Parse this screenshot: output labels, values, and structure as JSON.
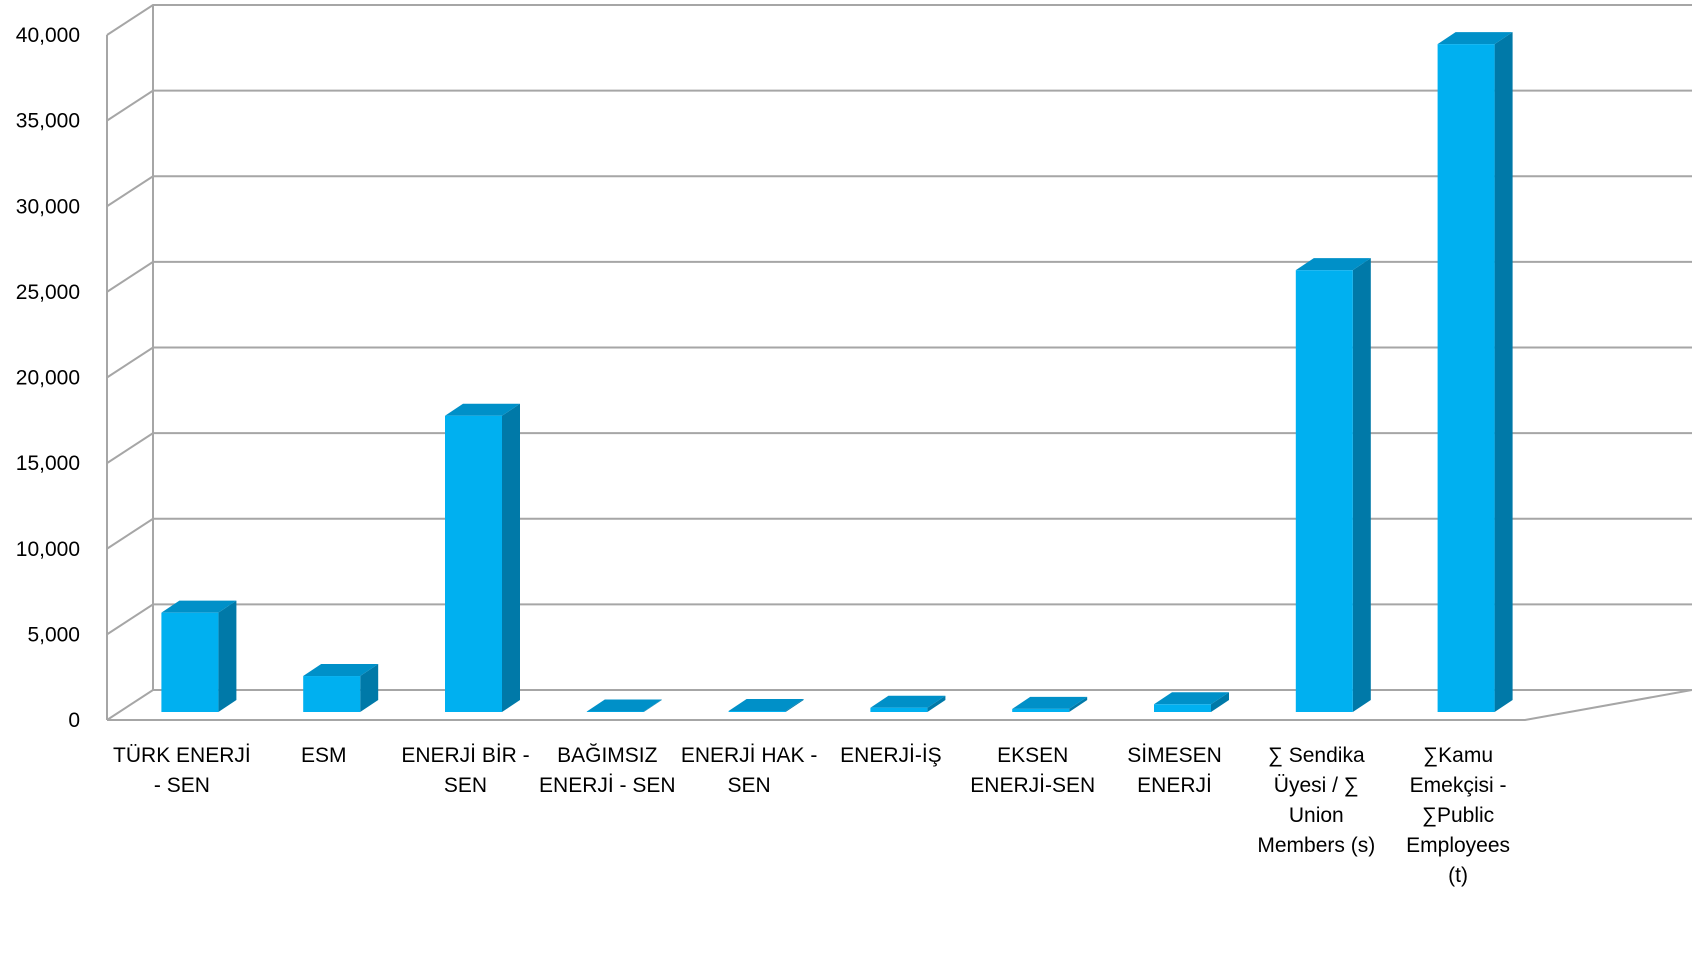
{
  "chart_data": {
    "type": "bar",
    "title": "",
    "xlabel": "",
    "ylabel": "",
    "ylim": [
      0,
      40000
    ],
    "grid": true,
    "style": "3d-column",
    "colors": {
      "front": "#00B0F0",
      "side": "#0079A8",
      "top": "#0090C8",
      "grid": "#A6A6A6"
    },
    "y_ticks": [
      "0",
      "5,000",
      "10,000",
      "15,000",
      "20,000",
      "25,000",
      "30,000",
      "35,000",
      "40,000"
    ],
    "categories": [
      [
        "TÜRK ENERJİ",
        "- SEN"
      ],
      [
        "ESM"
      ],
      [
        "ENERJİ BİR -",
        "SEN"
      ],
      [
        "BAĞIMSIZ",
        "ENERJİ - SEN"
      ],
      [
        "ENERJİ HAK -",
        "SEN"
      ],
      [
        "ENERJİ-İŞ"
      ],
      [
        "EKSEN",
        "ENERJİ-SEN"
      ],
      [
        "SİMESEN",
        "ENERJİ"
      ],
      [
        "∑ Sendika",
        "Üyesi / ∑",
        "Union",
        "Members (s)"
      ],
      [
        "∑Kamu",
        "Emekçisi -",
        "∑Public",
        "Employees",
        "(t)"
      ]
    ],
    "values": [
      5800,
      2100,
      17300,
      30,
      60,
      250,
      180,
      450,
      25800,
      39000
    ]
  }
}
